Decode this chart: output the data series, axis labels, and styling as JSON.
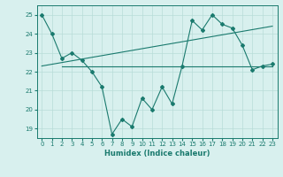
{
  "line1_x": [
    0,
    1,
    2,
    3,
    4,
    5,
    6,
    7,
    8,
    9,
    10,
    11,
    12,
    13,
    14,
    15,
    16,
    17,
    18,
    19,
    20,
    21,
    22,
    23
  ],
  "line1_y": [
    25.0,
    24.0,
    22.7,
    23.0,
    22.6,
    22.0,
    21.2,
    18.7,
    19.5,
    19.1,
    20.6,
    20.0,
    21.2,
    20.3,
    22.3,
    24.7,
    24.2,
    25.0,
    24.5,
    24.3,
    23.4,
    22.1,
    22.3,
    22.4
  ],
  "line2_x": [
    0,
    23
  ],
  "line2_y": [
    22.3,
    24.4
  ],
  "line3_x": [
    2,
    23
  ],
  "line3_y": [
    22.3,
    22.3
  ],
  "color": "#1a7a6e",
  "bg_color": "#d8f0ee",
  "grid_color": "#b8dcd8",
  "xlabel": "Humidex (Indice chaleur)",
  "xlim": [
    -0.5,
    23.5
  ],
  "ylim": [
    18.5,
    25.5
  ],
  "yticks": [
    19,
    20,
    21,
    22,
    23,
    24,
    25
  ],
  "xticks": [
    0,
    1,
    2,
    3,
    4,
    5,
    6,
    7,
    8,
    9,
    10,
    11,
    12,
    13,
    14,
    15,
    16,
    17,
    18,
    19,
    20,
    21,
    22,
    23
  ],
  "marker": "D",
  "markersize": 2.0,
  "linewidth": 0.8
}
